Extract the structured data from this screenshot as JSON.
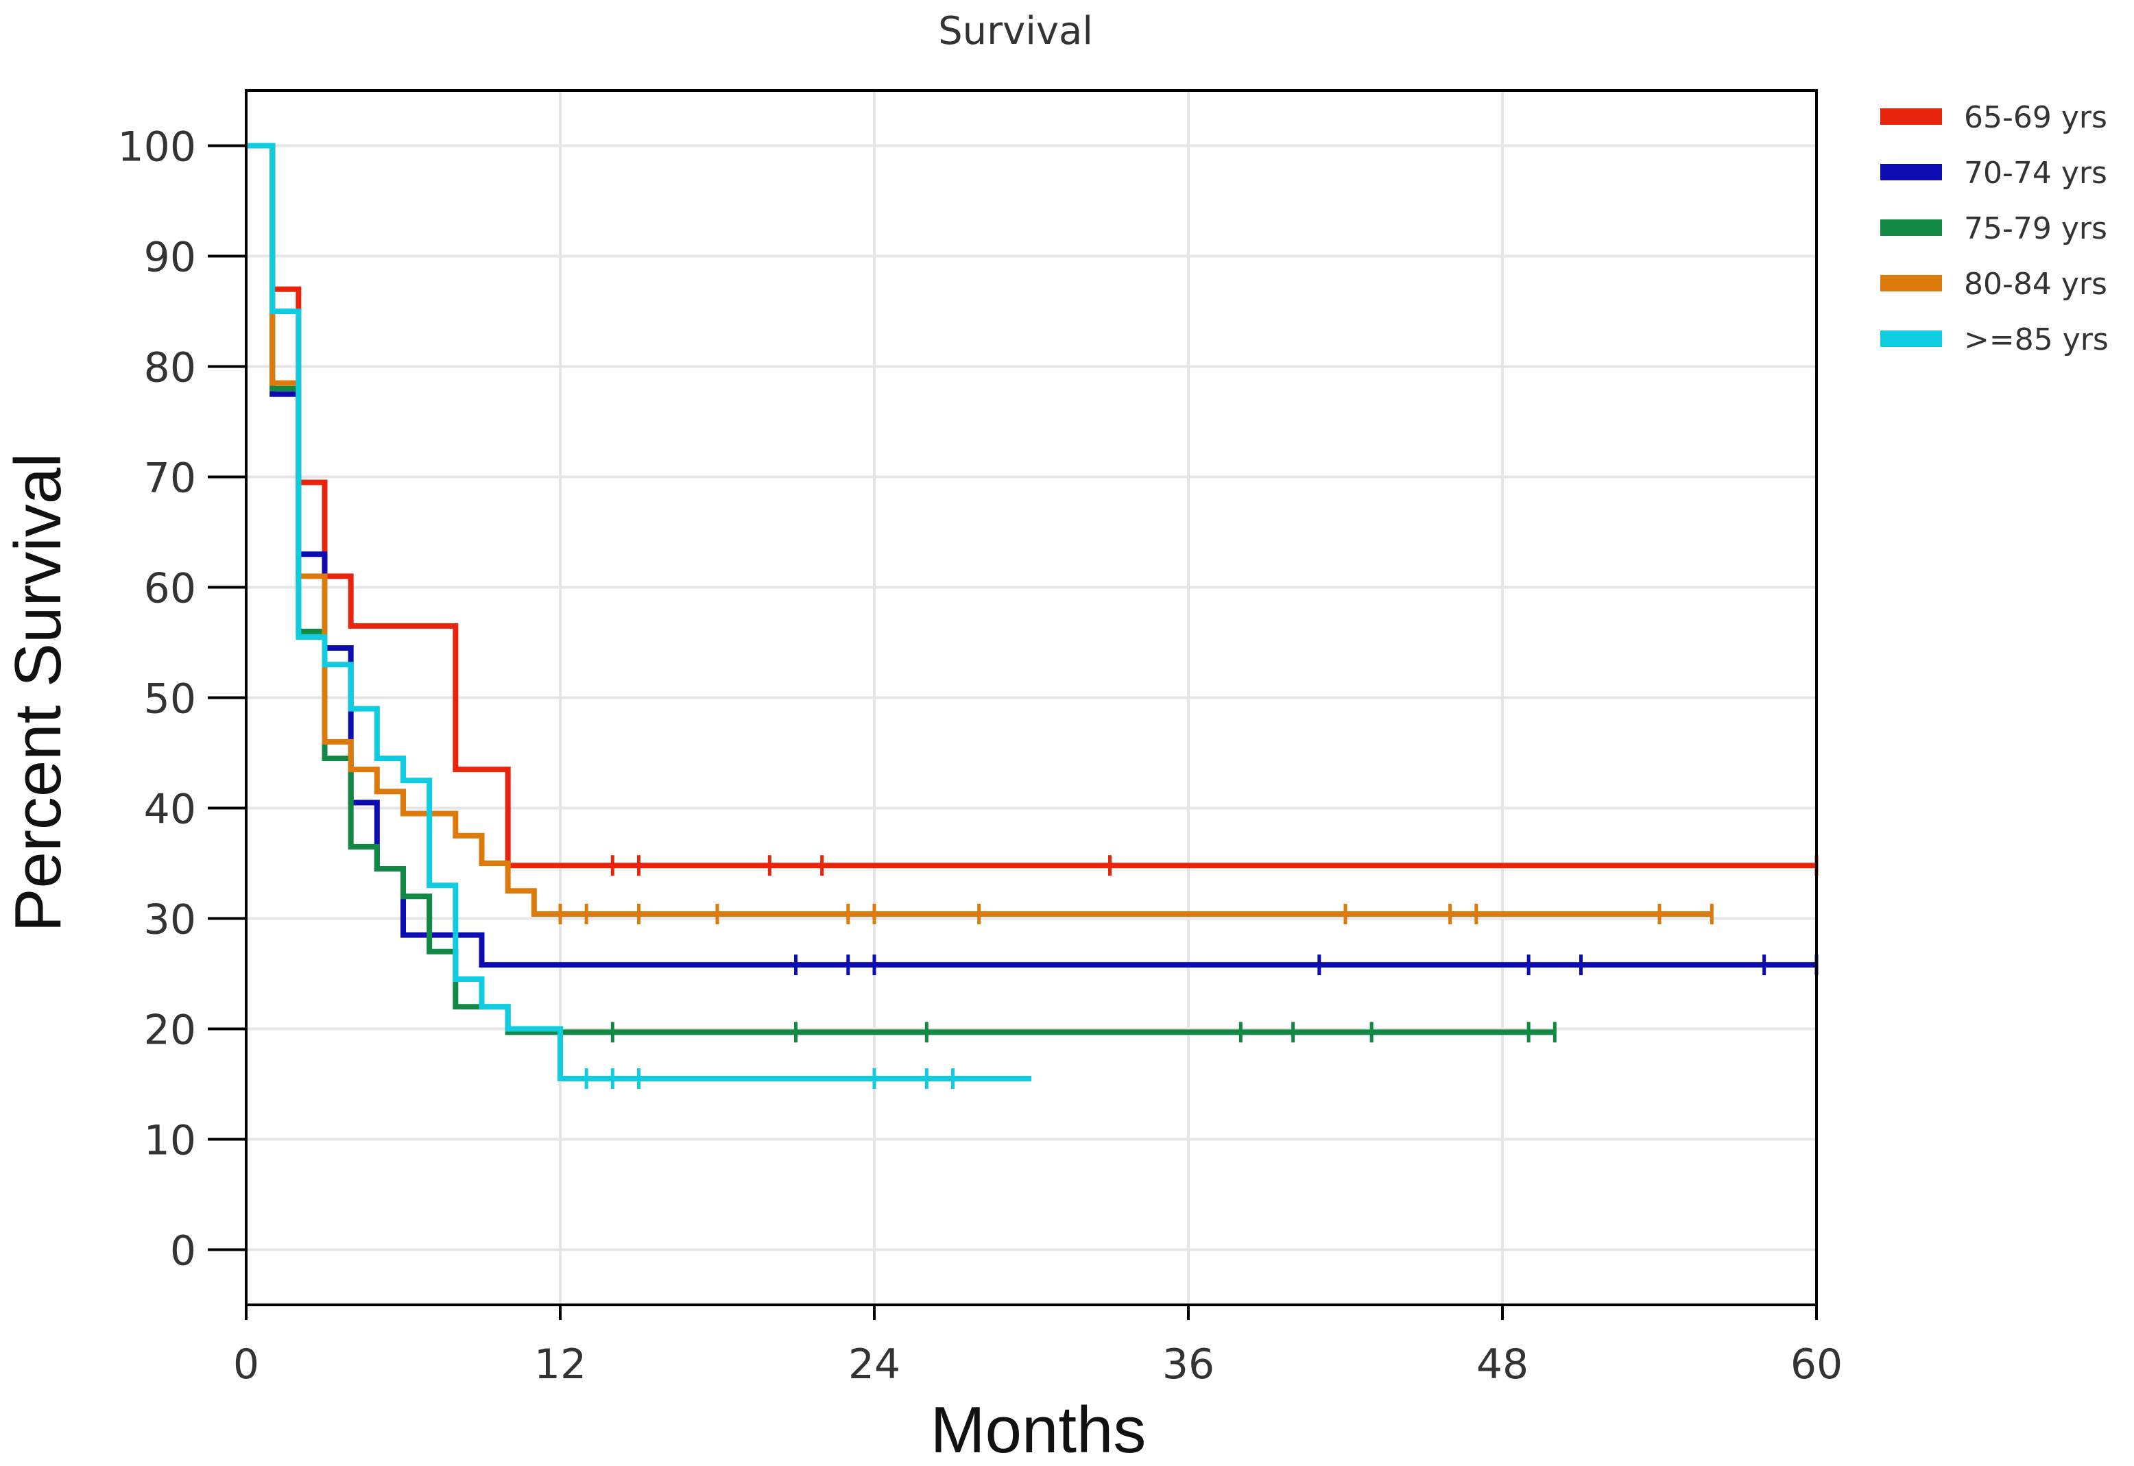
{
  "chart_data": {
    "type": "line",
    "subtype": "kaplan-meier step",
    "title": "Survival",
    "xlabel": "Months",
    "ylabel": "Percent Survival",
    "xlim": [
      0,
      60
    ],
    "ylim": [
      -5,
      105
    ],
    "xticks": [
      0,
      12,
      24,
      36,
      48,
      60
    ],
    "yticks": [
      0,
      10,
      20,
      30,
      40,
      50,
      60,
      70,
      80,
      90,
      100
    ],
    "grid": true,
    "legend_position": "top-right",
    "series": [
      {
        "name": "65-69 yrs",
        "color": "#e8250c",
        "steps": [
          [
            0,
            100
          ],
          [
            1,
            87
          ],
          [
            2,
            69.5
          ],
          [
            3,
            61
          ],
          [
            4,
            56.5
          ],
          [
            8,
            43.5
          ],
          [
            10,
            34.8
          ],
          [
            60,
            34.8
          ]
        ],
        "censored": [
          14,
          15,
          20,
          22,
          33,
          60
        ]
      },
      {
        "name": "70-74 yrs",
        "color": "#0c0cb0",
        "steps": [
          [
            0,
            100
          ],
          [
            1,
            77.5
          ],
          [
            2,
            63
          ],
          [
            3,
            54.5
          ],
          [
            4,
            40.5
          ],
          [
            5,
            34.5
          ],
          [
            6,
            28.5
          ],
          [
            8,
            28.5
          ],
          [
            9,
            25.8
          ],
          [
            60,
            25.8
          ]
        ],
        "censored": [
          21,
          23,
          24,
          41,
          49,
          51,
          58,
          60
        ]
      },
      {
        "name": "75-79 yrs",
        "color": "#118844",
        "steps": [
          [
            0,
            100
          ],
          [
            1,
            78
          ],
          [
            2,
            56
          ],
          [
            3,
            44.5
          ],
          [
            4,
            36.5
          ],
          [
            5,
            34.5
          ],
          [
            6,
            32
          ],
          [
            7,
            27
          ],
          [
            8,
            22
          ],
          [
            10,
            19.7
          ],
          [
            50,
            19.7
          ]
        ],
        "censored": [
          14,
          21,
          26,
          38,
          40,
          43,
          49,
          50
        ]
      },
      {
        "name": "80-84 yrs",
        "color": "#dd7a0c",
        "steps": [
          [
            0,
            100
          ],
          [
            1,
            78.5
          ],
          [
            2,
            61
          ],
          [
            3,
            46
          ],
          [
            4,
            43.5
          ],
          [
            5,
            41.5
          ],
          [
            6,
            39.5
          ],
          [
            7,
            39.5
          ],
          [
            8,
            37.5
          ],
          [
            9,
            35
          ],
          [
            10,
            32.5
          ],
          [
            11,
            30.4
          ],
          [
            56,
            30.4
          ]
        ],
        "censored": [
          12,
          13,
          15,
          18,
          23,
          24,
          28,
          42,
          46,
          47,
          54,
          56
        ]
      },
      {
        "name": ">=85 yrs",
        "color": "#10cce0",
        "steps": [
          [
            0,
            100
          ],
          [
            1,
            85
          ],
          [
            2,
            55.5
          ],
          [
            3,
            53
          ],
          [
            4,
            49
          ],
          [
            5,
            44.5
          ],
          [
            6,
            42.5
          ],
          [
            7,
            33
          ],
          [
            8,
            24.5
          ],
          [
            9,
            22
          ],
          [
            10,
            20
          ],
          [
            12,
            15.5
          ],
          [
            30,
            15.5
          ]
        ],
        "censored": [
          13,
          14,
          15,
          24,
          26,
          27
        ]
      }
    ]
  }
}
